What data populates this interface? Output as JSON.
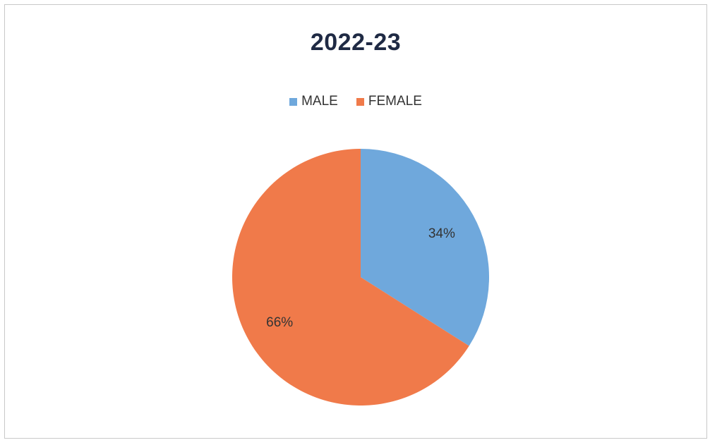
{
  "chart_data": {
    "type": "pie",
    "title": "2022-23",
    "legend_position": "top",
    "slices": [
      {
        "label": "MALE",
        "value": 34,
        "display": "34%",
        "color": "#6fa8dc"
      },
      {
        "label": "FEMALE",
        "value": 66,
        "display": "66%",
        "color": "#f07a4a"
      }
    ]
  }
}
